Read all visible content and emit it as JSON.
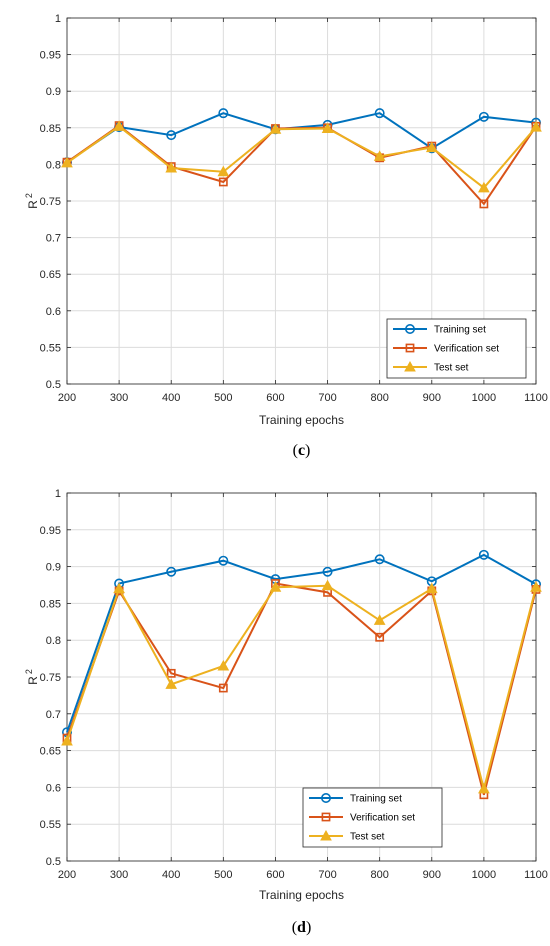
{
  "chart_data": [
    {
      "type": "line",
      "panel_label_open": "(",
      "panel_label": "c",
      "panel_label_close": ")",
      "xlabel": "Training epochs",
      "ylabel": "R",
      "ylabel_sup": "2",
      "xlim": [
        200,
        1100
      ],
      "ylim": [
        0.5,
        1
      ],
      "x_ticks": [
        "200",
        "300",
        "400",
        "500",
        "600",
        "700",
        "800",
        "900",
        "1000",
        "1100"
      ],
      "y_ticks": [
        "0.5",
        "0.55",
        "0.6",
        "0.65",
        "0.7",
        "0.75",
        "0.8",
        "0.85",
        "0.9",
        "0.95",
        "1"
      ],
      "grid": true,
      "legend_position": "bottom-right",
      "x": [
        200,
        300,
        400,
        500,
        600,
        700,
        800,
        900,
        1000,
        1100
      ],
      "series": [
        {
          "name": "Training set",
          "color": "#0072BD",
          "marker": "circle",
          "values": [
            0.803,
            0.851,
            0.84,
            0.87,
            0.848,
            0.854,
            0.87,
            0.822,
            0.865,
            0.857
          ]
        },
        {
          "name": "Verification set",
          "color": "#D95319",
          "marker": "square",
          "values": [
            0.803,
            0.853,
            0.797,
            0.776,
            0.849,
            0.85,
            0.809,
            0.825,
            0.746,
            0.852
          ]
        },
        {
          "name": "Test set",
          "color": "#EDB120",
          "marker": "triangle",
          "values": [
            0.802,
            0.852,
            0.795,
            0.79,
            0.848,
            0.849,
            0.811,
            0.823,
            0.768,
            0.851
          ]
        }
      ]
    },
    {
      "type": "line",
      "panel_label_open": "(",
      "panel_label": "d",
      "panel_label_close": ")",
      "xlabel": "Training epochs",
      "ylabel": "R",
      "ylabel_sup": "2",
      "xlim": [
        200,
        1100
      ],
      "ylim": [
        0.5,
        1
      ],
      "x_ticks": [
        "200",
        "300",
        "400",
        "500",
        "600",
        "700",
        "800",
        "900",
        "1000",
        "1100"
      ],
      "y_ticks": [
        "0.5",
        "0.55",
        "0.6",
        "0.65",
        "0.7",
        "0.75",
        "0.8",
        "0.85",
        "0.9",
        "0.95",
        "1"
      ],
      "grid": true,
      "legend_position": "bottom-center",
      "x": [
        200,
        300,
        400,
        500,
        600,
        700,
        800,
        900,
        1000,
        1100
      ],
      "series": [
        {
          "name": "Training set",
          "color": "#0072BD",
          "marker": "circle",
          "values": [
            0.675,
            0.877,
            0.893,
            0.908,
            0.883,
            0.893,
            0.91,
            0.88,
            0.916,
            0.876
          ]
        },
        {
          "name": "Verification set",
          "color": "#D95319",
          "marker": "square",
          "values": [
            0.667,
            0.867,
            0.755,
            0.735,
            0.877,
            0.865,
            0.804,
            0.867,
            0.59,
            0.869
          ]
        },
        {
          "name": "Test set",
          "color": "#EDB120",
          "marker": "triangle",
          "values": [
            0.663,
            0.87,
            0.74,
            0.765,
            0.872,
            0.874,
            0.827,
            0.87,
            0.598,
            0.872
          ]
        }
      ]
    }
  ]
}
